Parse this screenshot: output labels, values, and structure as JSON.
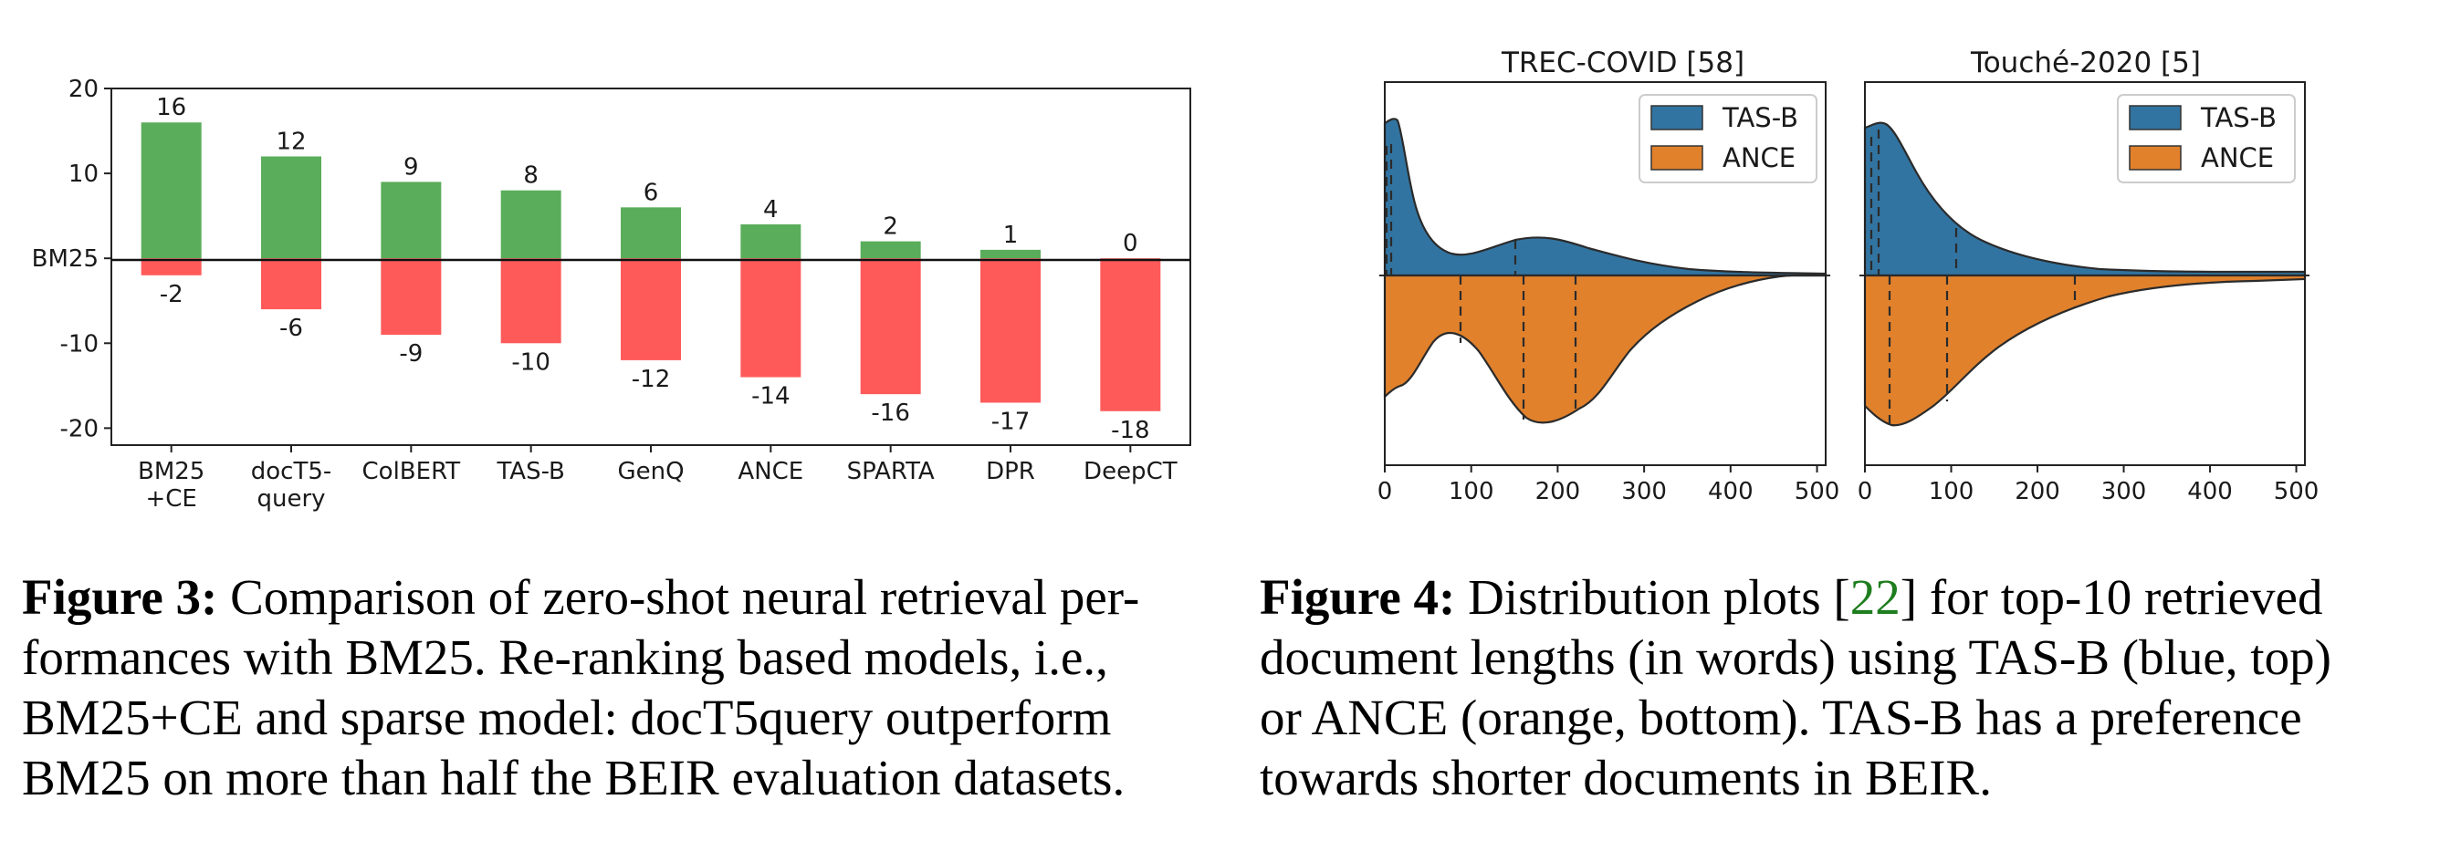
{
  "chart_data": [
    {
      "type": "bar",
      "categories": [
        "BM25\n+CE",
        "docT5-\nquery",
        "ColBERT",
        "TAS-B",
        "GenQ",
        "ANCE",
        "SPARTA",
        "DPR",
        "DeepCT"
      ],
      "series": [
        {
          "values": [
            16,
            12,
            9,
            8,
            6,
            4,
            2,
            1,
            0
          ],
          "color": "#5aad5b"
        },
        {
          "values": [
            -2,
            -6,
            -9,
            -10,
            -12,
            -14,
            -16,
            -17,
            -18
          ],
          "color": "#ff5a5a"
        }
      ],
      "ylim": [
        -22,
        20
      ],
      "yticks": [
        {
          "value": 20,
          "label": "20"
        },
        {
          "value": 10,
          "label": "10"
        },
        {
          "value": 0,
          "label": "BM25"
        },
        {
          "value": -10,
          "label": "-10"
        },
        {
          "value": -20,
          "label": "-20"
        }
      ],
      "baseline_label": "BM25",
      "grid": false
    },
    {
      "type": "area",
      "title": "TREC-COVID [58]",
      "xlim": [
        0,
        510
      ],
      "xticks": [
        "0",
        "100",
        "200",
        "300",
        "400",
        "500"
      ],
      "legend": [
        "TAS-B",
        "ANCE"
      ],
      "legend_position": "top-right",
      "series": [
        {
          "name": "TAS-B",
          "color": "#3274a1",
          "quartiles": [
            2,
            10,
            150
          ],
          "peak_x": 5
        },
        {
          "name": "ANCE",
          "color": "#e1812c",
          "quartiles": [
            90,
            160,
            225
          ],
          "peak_x": 160
        }
      ]
    },
    {
      "type": "area",
      "title": "Touché-2020 [5]",
      "xlim": [
        0,
        510
      ],
      "xticks": [
        "0",
        "100",
        "200",
        "300",
        "400",
        "500"
      ],
      "legend": [
        "TAS-B",
        "ANCE"
      ],
      "legend_position": "top-right",
      "series": [
        {
          "name": "TAS-B",
          "color": "#3274a1",
          "quartiles": [
            5,
            15,
            105
          ],
          "peak_x": 15
        },
        {
          "name": "ANCE",
          "color": "#e1812c",
          "quartiles": [
            25,
            90,
            245
          ],
          "peak_x": 40
        }
      ]
    }
  ],
  "captions": {
    "fig3": {
      "label": "Figure 3:",
      "line1": "Comparison of zero-shot neural retrieval per-",
      "line2": "formances with BM25. Re-ranking based models, i.e.,",
      "line3": "BM25+CE and sparse model: docT5query outperform",
      "line4a": "BM25 on more than half the ",
      "line4b": "BEIR",
      "line4c": " evaluation datasets."
    },
    "fig4": {
      "label": "Figure 4:",
      "line1a": "Distribution plots [",
      "line1b": "22",
      "line1c": "] for top-10 retrieved",
      "line2": "document lengths (in words) using TAS-B (blue, top)",
      "line3": "or ANCE (orange, bottom).  TAS-B has a preference",
      "line4a": "towards shorter documents in ",
      "line4b": "BEIR",
      "line4c": "."
    }
  }
}
